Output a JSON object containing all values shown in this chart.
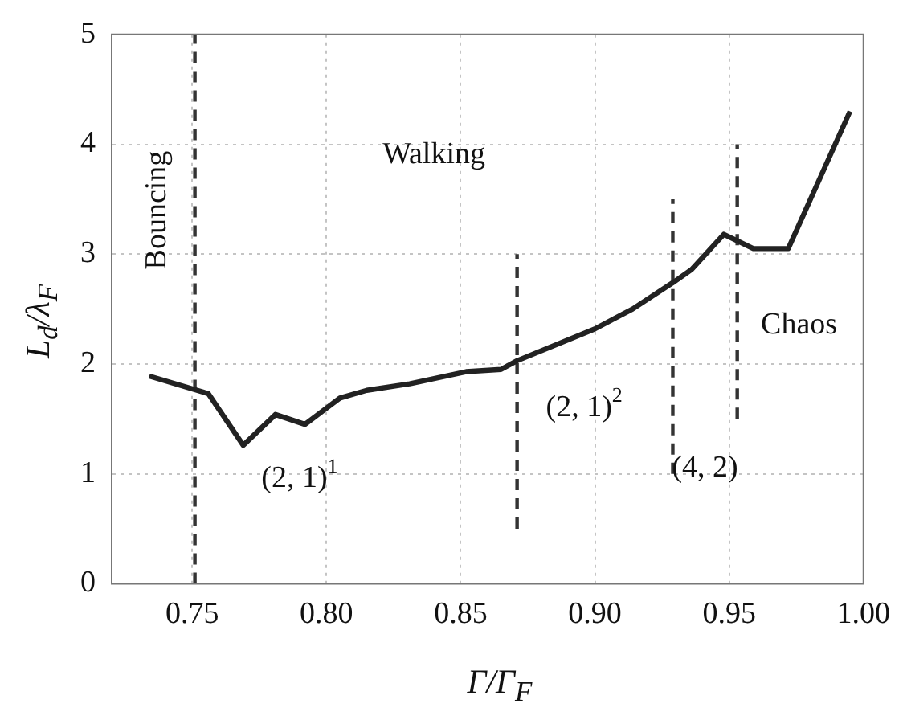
{
  "chart_data": {
    "type": "line",
    "xlabel": "Γ/Γ$_{F}$",
    "ylabel": "L$_{d}$/λ$_{F}$",
    "xlim": [
      0.72,
      1.0
    ],
    "ylim": [
      0,
      5
    ],
    "xticks": [
      0.75,
      {
        "value": 0.8,
        "label": "0.80"
      },
      0.85,
      {
        "value": 0.9,
        "label": "0.90"
      },
      0.95,
      {
        "value": 1.0,
        "label": "1.00"
      }
    ],
    "yticks": [
      0,
      1,
      2,
      3,
      4,
      5
    ],
    "grid": true,
    "legend": false,
    "marker": "none",
    "line_style": "solid",
    "series": [
      {
        "color": "#222222",
        "x": [
          0.734,
          0.756,
          0.769,
          0.781,
          0.792,
          0.805,
          0.815,
          0.831,
          0.852,
          0.865,
          0.871,
          0.9,
          0.914,
          0.929,
          0.936,
          0.948,
          0.959,
          0.972,
          0.995
        ],
        "values": [
          1.89,
          1.73,
          1.26,
          1.54,
          1.45,
          1.69,
          1.76,
          1.82,
          1.93,
          1.95,
          2.03,
          2.32,
          2.5,
          2.74,
          2.86,
          3.18,
          3.05,
          3.05,
          4.3
        ]
      },
      {
        "type": "line",
        "color": "#333333",
        "line_style": "dashed",
        "x": [
          0.751,
          0.751
        ],
        "values": [
          0,
          5
        ]
      },
      {
        "type": "line",
        "color": "#333333",
        "line_style": "dashed",
        "x": [
          0.871,
          0.871
        ],
        "values": [
          0.5,
          3
        ]
      },
      {
        "type": "line",
        "color": "#333333",
        "line_style": "dashed",
        "x": [
          0.929,
          0.929
        ],
        "values": [
          1,
          3.5
        ]
      },
      {
        "type": "line",
        "color": "#333333",
        "line_style": "dashed",
        "x": [
          0.953,
          0.953
        ],
        "values": [
          1.5,
          4
        ]
      }
    ],
    "annotations": [
      "Bouncing",
      "Walking",
      "(2, 1)$^{1}$",
      "(2, 1)$^{2}$",
      "(4, 2)",
      "Chaos"
    ]
  }
}
